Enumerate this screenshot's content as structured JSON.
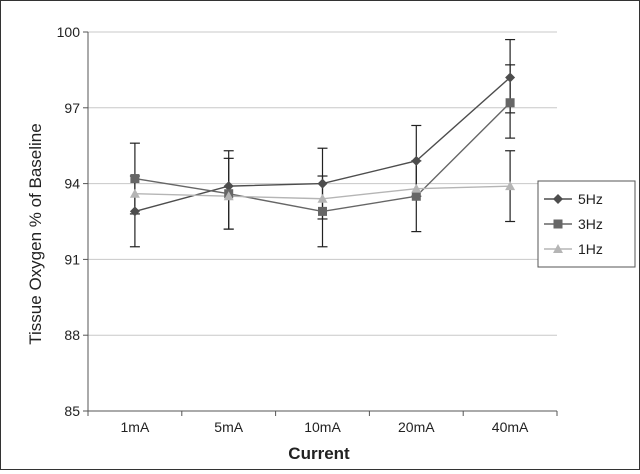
{
  "chart_data": {
    "type": "line",
    "title": "",
    "xlabel": "Current",
    "ylabel": "Tissue Oxygen % of Baseline",
    "categories": [
      "1mA",
      "5mA",
      "10mA",
      "20mA",
      "40mA"
    ],
    "y_ticks": [
      "85",
      "88",
      "91",
      "94",
      "97",
      "100"
    ],
    "ylim": [
      85,
      100
    ],
    "grid": true,
    "legend_position": "right",
    "series": [
      {
        "name": "5Hz",
        "marker": "diamond",
        "color": "#4d4d4d",
        "values": [
          92.9,
          93.9,
          94.0,
          94.9,
          98.2
        ],
        "error_low": [
          91.5,
          92.2,
          92.6,
          93.5,
          96.8
        ],
        "error_high": [
          94.3,
          95.3,
          95.4,
          96.3,
          99.7
        ]
      },
      {
        "name": "3Hz",
        "marker": "square",
        "color": "#666666",
        "values": [
          94.2,
          93.6,
          92.9,
          93.5,
          97.2
        ],
        "error_low": [
          92.8,
          92.2,
          91.5,
          92.1,
          95.8
        ],
        "error_high": [
          95.6,
          95.0,
          94.3,
          94.9,
          98.7
        ]
      },
      {
        "name": "1Hz",
        "marker": "triangle",
        "color": "#b5b5b5",
        "values": [
          93.6,
          93.5,
          93.4,
          93.8,
          93.9
        ],
        "error_low": [
          93.6,
          93.5,
          93.4,
          93.8,
          92.5
        ],
        "error_high": [
          93.6,
          93.5,
          93.4,
          93.8,
          95.3
        ]
      }
    ]
  }
}
